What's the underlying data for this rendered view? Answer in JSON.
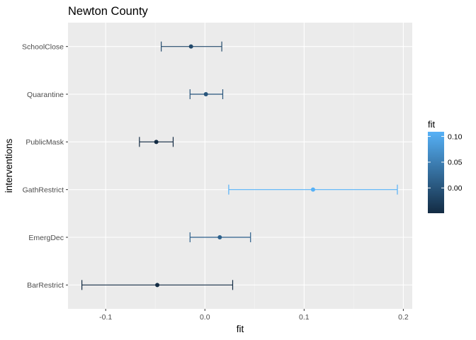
{
  "chart_data": {
    "type": "errorbar",
    "title": "Newton County",
    "xlabel": "fit",
    "ylabel": "interventions",
    "xlim": [
      -0.138,
      0.209
    ],
    "x_ticks": [
      -0.1,
      0.0,
      0.1,
      0.2
    ],
    "x_tick_labels": [
      "-0.1",
      "0.0",
      "0.1",
      "0.2"
    ],
    "categories": [
      "SchoolClose",
      "Quarantine",
      "PublicMask",
      "GathRestrict",
      "EmergDec",
      "BarRestrict"
    ],
    "series": [
      {
        "values": [
          -0.014,
          0.001,
          -0.049,
          0.109,
          0.015,
          -0.048
        ],
        "lower": [
          -0.044,
          -0.015,
          -0.066,
          0.024,
          -0.015,
          -0.124
        ],
        "upper": [
          0.017,
          0.018,
          -0.032,
          0.194,
          0.046,
          0.028
        ]
      }
    ],
    "grid": true,
    "legend": {
      "title": "fit",
      "type": "colorbar",
      "position": "right",
      "ticks": [
        0.1,
        0.05,
        0.0
      ],
      "tick_labels": [
        "0.10",
        "0.05",
        "0.00"
      ],
      "range": [
        -0.049,
        0.109
      ],
      "low_color": "#132b43",
      "high_color": "#56b1f7"
    },
    "colors": {
      "panel_bg": "#ebebeb",
      "grid_major": "#ffffff",
      "grid_minor": "#f5f5f5"
    }
  }
}
